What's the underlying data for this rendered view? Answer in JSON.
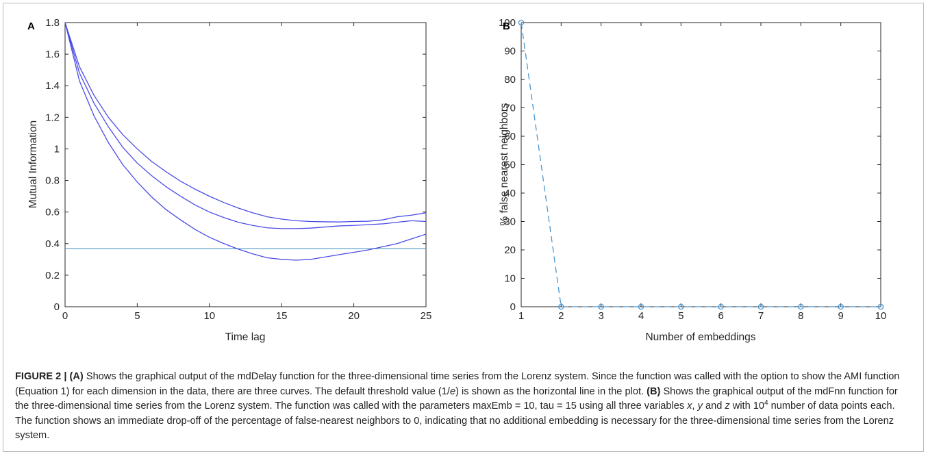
{
  "colors": {
    "curve": "#4a4ae6",
    "threshold": "#4a9ac4",
    "fnn": "#4a95cf",
    "axis": "#262626",
    "caption": "#222222"
  },
  "chart_data": [
    {
      "panel_label": "A",
      "type": "line",
      "xlabel": "Time lag",
      "ylabel": "Mutual Information",
      "xlim": [
        0,
        25
      ],
      "ylim": [
        0,
        1.8
      ],
      "xticks": [
        0,
        5,
        10,
        15,
        20,
        25
      ],
      "yticks": [
        0,
        0.2,
        0.4,
        0.6,
        0.8,
        1,
        1.2,
        1.4,
        1.6,
        1.8
      ],
      "ytick_labels": [
        "0",
        "0.2",
        "0.4",
        "0.6",
        "0.8",
        "1",
        "1.2",
        "1.4",
        "1.6",
        "1.8"
      ],
      "x": [
        0,
        1,
        2,
        3,
        4,
        5,
        6,
        7,
        8,
        9,
        10,
        11,
        12,
        13,
        14,
        15,
        16,
        17,
        18,
        19,
        20,
        21,
        22,
        23,
        24,
        25
      ],
      "series": [
        {
          "values": [
            1.8,
            1.52,
            1.34,
            1.2,
            1.09,
            1.0,
            0.92,
            0.855,
            0.795,
            0.745,
            0.7,
            0.66,
            0.625,
            0.595,
            0.57,
            0.555,
            0.545,
            0.54,
            0.538,
            0.537,
            0.54,
            0.542,
            0.55,
            0.57,
            0.58,
            0.595
          ]
        },
        {
          "values": [
            1.8,
            1.48,
            1.29,
            1.14,
            1.01,
            0.91,
            0.83,
            0.76,
            0.7,
            0.645,
            0.6,
            0.565,
            0.535,
            0.515,
            0.5,
            0.495,
            0.495,
            0.498,
            0.505,
            0.512,
            0.515,
            0.52,
            0.525,
            0.535,
            0.545,
            0.54
          ]
        },
        {
          "values": [
            1.8,
            1.43,
            1.21,
            1.04,
            0.9,
            0.79,
            0.695,
            0.615,
            0.55,
            0.49,
            0.44,
            0.4,
            0.365,
            0.335,
            0.31,
            0.3,
            0.295,
            0.3,
            0.315,
            0.33,
            0.345,
            0.36,
            0.38,
            0.4,
            0.43,
            0.46
          ]
        }
      ],
      "threshold": 0.3679
    },
    {
      "panel_label": "B",
      "type": "line",
      "xlabel": "Number of embeddings",
      "ylabel": "% false nearest neighbors",
      "xlim": [
        1,
        10
      ],
      "ylim": [
        0,
        100
      ],
      "xticks": [
        1,
        2,
        3,
        4,
        5,
        6,
        7,
        8,
        9,
        10
      ],
      "yticks": [
        0,
        10,
        20,
        30,
        40,
        50,
        60,
        70,
        80,
        90,
        100
      ],
      "x": [
        1,
        2,
        3,
        4,
        5,
        6,
        7,
        8,
        9,
        10
      ],
      "values": [
        100,
        0,
        0,
        0,
        0,
        0,
        0,
        0,
        0,
        0
      ],
      "line_style": "dashed",
      "marker": "circle"
    }
  ],
  "caption": {
    "figure_label": "FIGURE 2 |",
    "part_a": "(A)",
    "text1": " Shows the graphical output of the mdDelay function for the three-dimensional time series from the Lorenz system. Since the function was called with the option to show the AMI function (Equation 1) for each dimension in the data, there are three curves. The default threshold value (1/",
    "e_var": "e",
    "text2": ") is shown as the horizontal line in the plot. ",
    "part_b": "(B)",
    "text3": " Shows the graphical output of the mdFnn function for the three-dimensional time series from the Lorenz system. The function was called with the parameters maxEmb = 10, tau = 15 using all three variables ",
    "var_x": "x",
    "sep1": ", ",
    "var_y": "y",
    "sep2": " and ",
    "var_z": "z",
    "text4": " with 10",
    "exponent": "4",
    "text5": " number of data points each. The function shows an immediate drop-off of the percentage of false-nearest neighbors to 0, indicating that no additional embedding is necessary for the three-dimensional time series from the Lorenz system."
  }
}
